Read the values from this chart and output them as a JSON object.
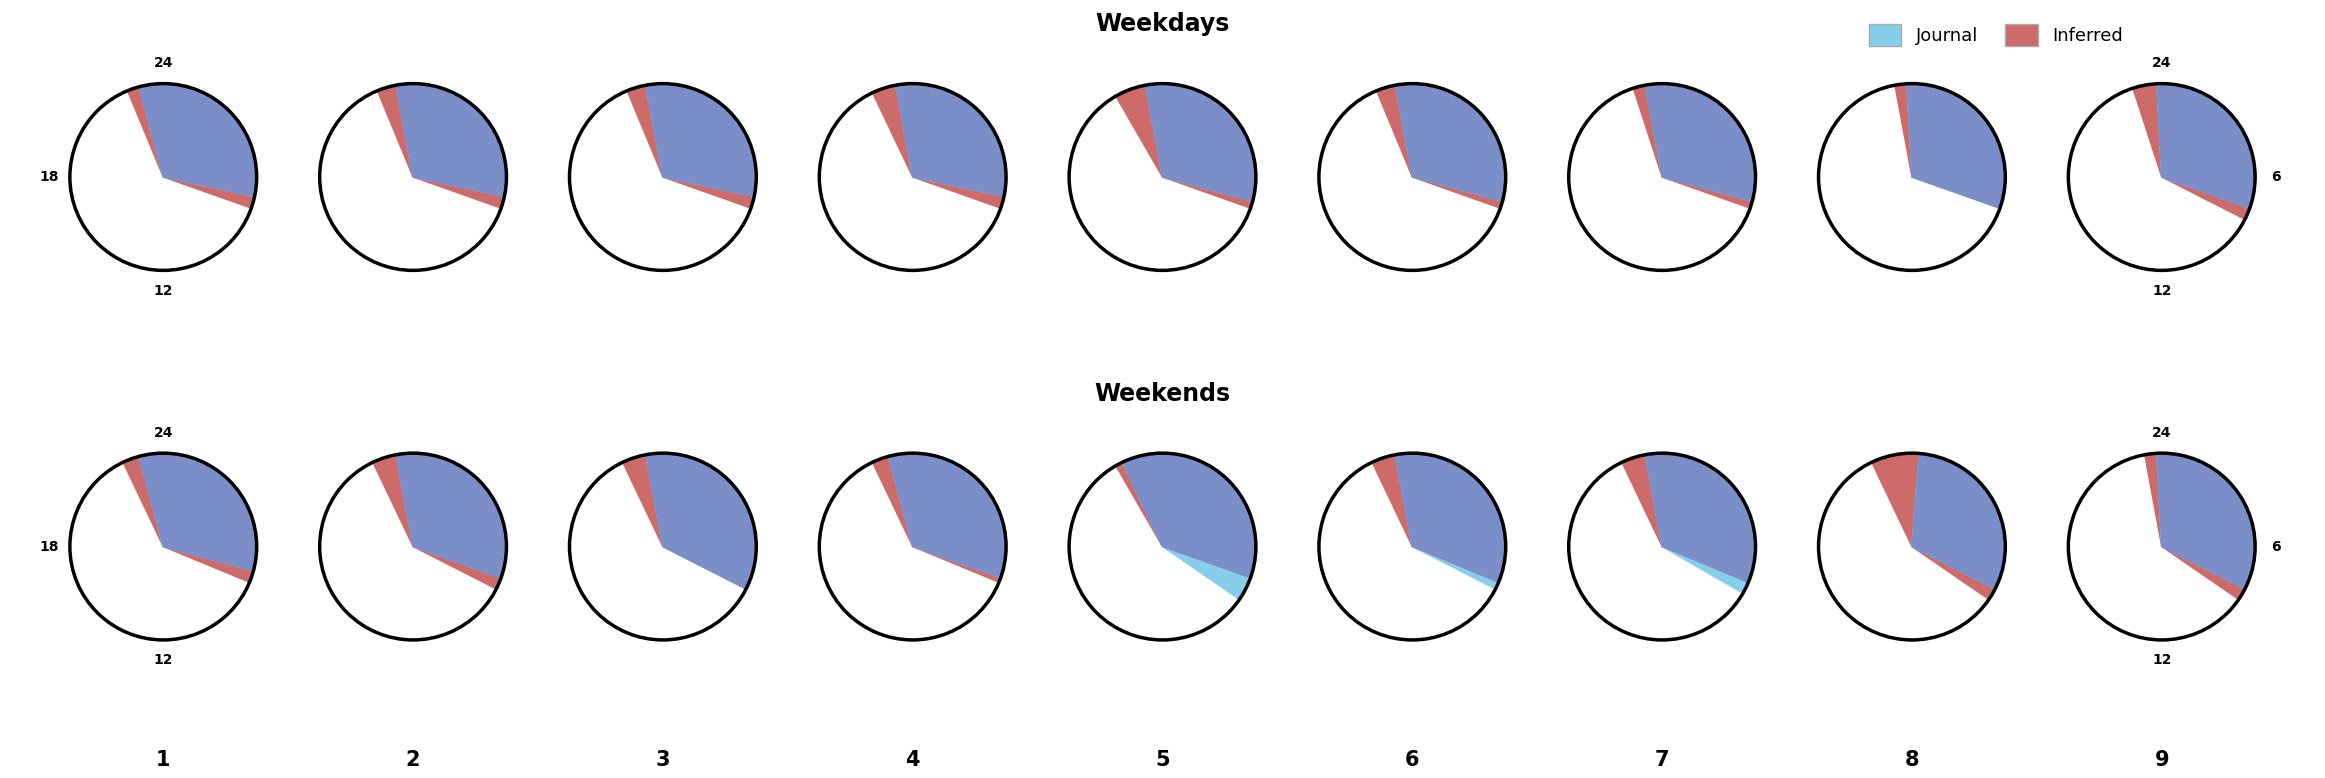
{
  "title_weekdays": "Weekdays",
  "title_weekends": "Weekends",
  "legend_journal": "Journal",
  "legend_inferred": "Inferred",
  "color_journal": "#87CEEB",
  "color_inferred": "#7B8EC8",
  "color_red": "#CD6B6B",
  "participants": [
    1,
    2,
    3,
    4,
    5,
    6,
    7,
    8,
    9
  ],
  "weekdays": {
    "inferred_start": [
      22.5,
      22.5,
      22.5,
      22.3,
      22.0,
      22.5,
      22.8,
      23.3,
      22.8
    ],
    "inferred_end": [
      7.3,
      7.3,
      7.3,
      7.3,
      7.3,
      7.3,
      7.3,
      7.3,
      7.8
    ],
    "journal_start": [
      23.0,
      23.3,
      23.3,
      23.3,
      23.3,
      23.3,
      23.3,
      23.8,
      23.8
    ],
    "journal_end": [
      6.8,
      6.8,
      6.8,
      6.8,
      7.0,
      7.0,
      7.0,
      7.3,
      7.3
    ]
  },
  "weekends": {
    "inferred_start": [
      22.3,
      22.3,
      22.3,
      22.3,
      22.0,
      22.3,
      22.3,
      22.3,
      23.3
    ],
    "inferred_end": [
      7.5,
      7.8,
      7.8,
      7.5,
      7.3,
      7.5,
      7.5,
      8.3,
      8.3
    ],
    "journal_start": [
      23.0,
      23.3,
      23.3,
      23.0,
      22.3,
      23.3,
      23.3,
      24.3,
      23.8
    ],
    "journal_end": [
      7.0,
      7.3,
      7.8,
      7.3,
      8.3,
      7.8,
      8.0,
      7.8,
      7.8
    ]
  },
  "figsize": [
    23.25,
    7.78
  ],
  "dpi": 100
}
